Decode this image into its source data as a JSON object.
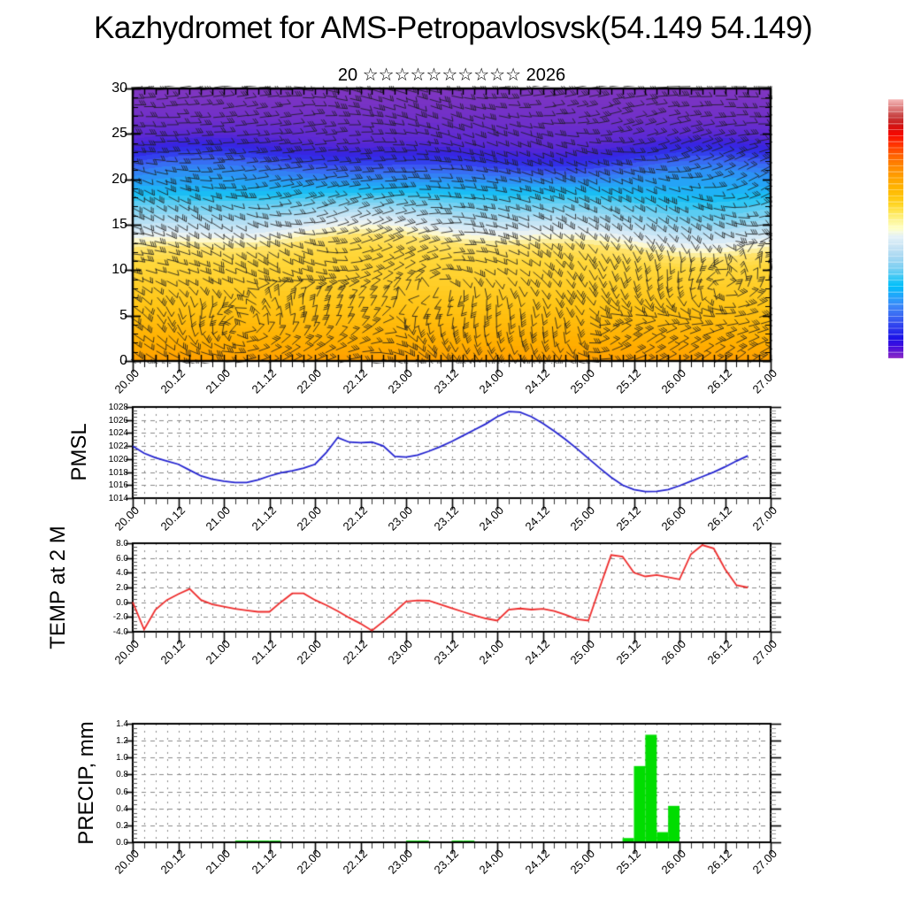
{
  "page": {
    "title": "Kazhydromet for AMS-Petropavlosvsk(54.149 54.149)",
    "subtitle": "20 ☆☆☆☆☆☆☆☆☆☆ 2026"
  },
  "time_axis": {
    "start_day": 20.0,
    "end_day": 27.0,
    "step_days": 0.125,
    "major_labels": [
      "20.00",
      "20.12",
      "21.00",
      "21.12",
      "22.00",
      "22.12",
      "23.00",
      "23.12",
      "24.00",
      "24.12",
      "25.00",
      "25.12",
      "26.00",
      "26.12",
      "27.00"
    ]
  },
  "colors": {
    "frame": "#000000",
    "grid": "#888888",
    "barb": "#1a1a1a",
    "pmsl_line": "#2323d0",
    "temp_line": "#ee2c2c",
    "precip_bar": "#00dd00",
    "background": "#ffffff"
  },
  "colorbar": {
    "stops": [
      [
        "#f5baba",
        0
      ],
      [
        "#e08585",
        0.03
      ],
      [
        "#c53a3a",
        0.07
      ],
      [
        "#d01515",
        0.1
      ],
      [
        "#f50800",
        0.135
      ],
      [
        "#ff2e00",
        0.17
      ],
      [
        "#ff5a00",
        0.21
      ],
      [
        "#ff8200",
        0.25
      ],
      [
        "#ffa000",
        0.3
      ],
      [
        "#ffb800",
        0.35
      ],
      [
        "#ffd11c",
        0.4
      ],
      [
        "#ffe95e",
        0.44
      ],
      [
        "#fdf7a0",
        0.475
      ],
      [
        "#ffffc8",
        0.5
      ],
      [
        "#e4f1f8",
        0.53
      ],
      [
        "#c8e4f4",
        0.57
      ],
      [
        "#a6d8f2",
        0.61
      ],
      [
        "#7ed0f2",
        0.65
      ],
      [
        "#38c8f5",
        0.69
      ],
      [
        "#00c0fa",
        0.72
      ],
      [
        "#23a5fb",
        0.76
      ],
      [
        "#3c86f8",
        0.8
      ],
      [
        "#3b65f2",
        0.84
      ],
      [
        "#2e3cee",
        0.88
      ],
      [
        "#1c14e8",
        0.92
      ],
      [
        "#3c0ce0",
        0.95
      ],
      [
        "#6417d2",
        0.975
      ],
      [
        "#8e2cc4",
        1
      ]
    ]
  },
  "chart_data": [
    {
      "type": "heatmap",
      "name": "wind-height-cross-section",
      "title": "20 ☆☆☆☆☆☆☆☆☆☆ 2026",
      "ylabel": "",
      "ylim": [
        0,
        30
      ],
      "yticks": [
        0,
        5,
        10,
        15,
        20,
        25,
        30
      ],
      "grid": false,
      "overlay": "wind-barbs",
      "palette_height_stops": [
        [
          0,
          "#ff9d00"
        ],
        [
          2,
          "#ffae00"
        ],
        [
          6,
          "#ffc414"
        ],
        [
          11,
          "#ffd83c"
        ],
        [
          12.6,
          "#ffe36a"
        ],
        [
          13.2,
          "#fbf3b4"
        ],
        [
          13.7,
          "#fdfbe3"
        ],
        [
          14.1,
          "#e4eff7"
        ],
        [
          15.5,
          "#b5dff4"
        ],
        [
          17.4,
          "#62cdf2"
        ],
        [
          18.3,
          "#18c2f4"
        ],
        [
          19.2,
          "#21adf6"
        ],
        [
          20.2,
          "#2f8df5"
        ],
        [
          21.4,
          "#3b5ef2"
        ],
        [
          22.3,
          "#2f31ea"
        ],
        [
          23.2,
          "#3b22de"
        ],
        [
          24.3,
          "#5a28d4"
        ],
        [
          26.5,
          "#6f2fca"
        ],
        [
          30,
          "#8136bf"
        ]
      ]
    },
    {
      "type": "line",
      "name": "PMSL",
      "ylabel": "PMSL",
      "ylim": [
        1014,
        1028
      ],
      "ytick_step": 2,
      "ytick_decimals": 0,
      "yminor_step": 0.5,
      "grid": true,
      "x_start": 20.0,
      "x_step": 0.125,
      "values": [
        1022.0,
        1020.9,
        1020.2,
        1019.7,
        1019.2,
        1018.3,
        1017.4,
        1016.9,
        1016.6,
        1016.4,
        1016.4,
        1016.8,
        1017.4,
        1017.9,
        1018.2,
        1018.6,
        1019.2,
        1021.0,
        1023.3,
        1022.6,
        1022.5,
        1022.6,
        1022.0,
        1020.4,
        1020.3,
        1020.6,
        1021.2,
        1021.9,
        1022.7,
        1023.6,
        1024.5,
        1025.4,
        1026.5,
        1027.3,
        1027.2,
        1026.5,
        1025.5,
        1024.3,
        1023.0,
        1021.6,
        1020.1,
        1018.6,
        1017.2,
        1016.0,
        1015.3,
        1015.0,
        1015.05,
        1015.3,
        1015.9,
        1016.6,
        1017.3,
        1018.0,
        1018.8,
        1019.7,
        1020.5
      ]
    },
    {
      "type": "line",
      "name": "TEMP at 2 M",
      "ylabel": "TEMP at 2 M",
      "ylim": [
        -4,
        8
      ],
      "ytick_step": 2,
      "ytick_decimals": 1,
      "yminor_step": 0.5,
      "grid": true,
      "x_start": 20.0,
      "x_step": 0.125,
      "values": [
        0.0,
        -3.7,
        -1.0,
        0.3,
        1.1,
        1.8,
        0.3,
        -0.3,
        -0.6,
        -0.9,
        -1.1,
        -1.3,
        -1.3,
        0.0,
        1.2,
        1.2,
        0.3,
        -0.4,
        -1.2,
        -2.1,
        -2.9,
        -3.85,
        -2.6,
        -1.3,
        0.1,
        0.25,
        0.2,
        -0.3,
        -0.8,
        -1.3,
        -1.8,
        -2.2,
        -2.5,
        -1.0,
        -0.85,
        -1.0,
        -0.9,
        -1.2,
        -1.7,
        -2.3,
        -2.5,
        2.0,
        6.4,
        6.2,
        4.0,
        3.5,
        3.7,
        3.4,
        3.1,
        6.5,
        7.75,
        7.3,
        4.5,
        2.3,
        2.0
      ]
    },
    {
      "type": "bar",
      "name": "PRECIP, mm",
      "ylabel": "PRECIP, mm",
      "ylim": [
        0,
        1.4
      ],
      "ytick_step": 0.2,
      "ytick_decimals": 1,
      "yminor_step": 0.05,
      "grid": true,
      "x_start": 20.0,
      "x_step": 0.125,
      "values": [
        0,
        0,
        0.01,
        0,
        0,
        0,
        0,
        0.01,
        0.01,
        0.02,
        0.02,
        0.02,
        0.02,
        0.01,
        0,
        0,
        0,
        0,
        0,
        0,
        0.01,
        0,
        0,
        0,
        0.02,
        0.02,
        0,
        0,
        0.02,
        0.02,
        0.01,
        0.01,
        0.01,
        0.01,
        0,
        0,
        0,
        0.01,
        0,
        0,
        0,
        0,
        0,
        0.05,
        0.9,
        1.27,
        0.12,
        0.43,
        0,
        0,
        0,
        0,
        0,
        0.01,
        0.01
      ]
    }
  ]
}
